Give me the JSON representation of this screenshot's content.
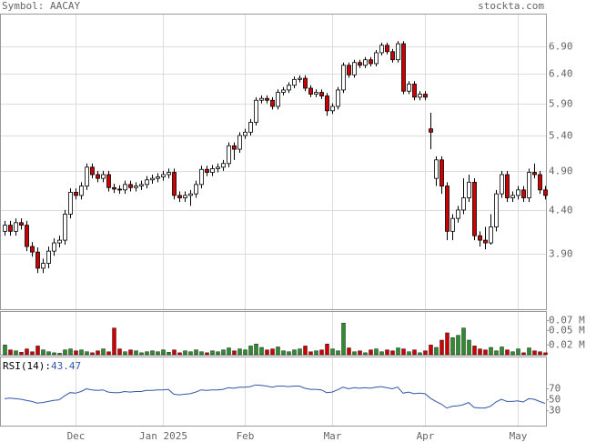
{
  "chart_data": {
    "type": "candlestick",
    "title": "Symbol: AACAY",
    "source": "stockta.com",
    "log_scale": true,
    "grid": true,
    "up_color": "#ffffff",
    "down_color": "#cc0000",
    "volume_up_color": "#2e8b2e",
    "volume_down_color": "#cc0000",
    "categories": [
      null,
      null,
      null,
      null,
      null,
      null,
      null,
      null,
      null,
      null,
      null,
      null,
      null,
      "Dec",
      null,
      null,
      null,
      null,
      null,
      null,
      null,
      null,
      null,
      null,
      null,
      null,
      null,
      null,
      null,
      "Jan 2025",
      null,
      null,
      null,
      null,
      null,
      null,
      null,
      null,
      null,
      null,
      null,
      null,
      null,
      null,
      "Feb",
      null,
      null,
      null,
      null,
      null,
      null,
      null,
      null,
      null,
      null,
      null,
      null,
      null,
      null,
      null,
      "Mar",
      null,
      null,
      null,
      null,
      null,
      null,
      null,
      null,
      null,
      null,
      null,
      null,
      null,
      null,
      null,
      null,
      "Apr",
      null,
      null,
      null,
      null,
      null,
      null,
      null,
      null,
      null,
      null,
      null,
      null,
      null,
      null,
      null,
      null,
      "May",
      null,
      null,
      null,
      null,
      null
    ],
    "open": [
      4.15,
      4.22,
      4.15,
      4.25,
      4.22,
      3.98,
      3.92,
      3.75,
      3.8,
      3.93,
      4.02,
      4.05,
      4.35,
      4.62,
      4.58,
      4.7,
      4.95,
      4.85,
      4.8,
      4.85,
      4.68,
      4.66,
      4.65,
      4.72,
      4.68,
      4.7,
      4.72,
      4.78,
      4.8,
      4.82,
      4.85,
      4.88,
      4.58,
      4.55,
      4.58,
      4.6,
      4.72,
      4.92,
      4.88,
      4.93,
      4.95,
      5.0,
      5.25,
      5.2,
      5.4,
      5.45,
      5.6,
      5.95,
      5.98,
      5.95,
      5.85,
      6.08,
      6.12,
      6.2,
      6.3,
      6.32,
      6.15,
      6.05,
      6.08,
      6.02,
      5.78,
      5.85,
      6.12,
      6.55,
      6.38,
      6.6,
      6.55,
      6.65,
      6.58,
      6.78,
      6.92,
      6.8,
      6.65,
      6.95,
      6.1,
      6.22,
      6.0,
      6.05,
      5.5,
      4.8,
      5.05,
      4.7,
      4.15,
      4.3,
      4.4,
      4.55,
      4.75,
      4.1,
      4.05,
      4.02,
      4.2,
      4.6,
      4.85,
      4.55,
      4.58,
      4.65,
      4.55,
      4.88,
      4.85,
      4.65
    ],
    "high": [
      4.27,
      4.27,
      4.3,
      4.3,
      4.27,
      4.03,
      3.97,
      3.85,
      3.98,
      4.07,
      4.1,
      4.4,
      4.67,
      4.67,
      4.75,
      5.0,
      5.0,
      4.9,
      4.9,
      4.9,
      4.73,
      4.71,
      4.77,
      4.77,
      4.75,
      4.77,
      4.83,
      4.85,
      4.87,
      4.9,
      4.93,
      4.93,
      4.63,
      4.63,
      4.65,
      4.77,
      4.97,
      4.97,
      4.98,
      5.0,
      5.05,
      5.3,
      5.3,
      5.45,
      5.5,
      5.65,
      6.0,
      6.03,
      6.03,
      6.0,
      6.13,
      6.17,
      6.25,
      6.35,
      6.37,
      6.37,
      6.2,
      6.13,
      6.13,
      6.07,
      5.9,
      6.17,
      6.6,
      6.6,
      6.65,
      6.65,
      6.7,
      6.7,
      6.83,
      6.97,
      6.97,
      6.85,
      7.0,
      7.0,
      6.27,
      6.27,
      6.1,
      6.1,
      5.75,
      5.1,
      5.1,
      4.75,
      4.35,
      4.45,
      4.8,
      4.85,
      4.8,
      4.15,
      4.2,
      4.35,
      4.65,
      4.9,
      4.9,
      4.63,
      4.7,
      4.7,
      4.93,
      5.0,
      4.9,
      4.7
    ],
    "low": [
      4.1,
      4.1,
      4.1,
      4.17,
      3.93,
      3.87,
      3.7,
      3.7,
      3.75,
      3.88,
      3.97,
      4.0,
      4.3,
      4.53,
      4.53,
      4.65,
      4.8,
      4.75,
      4.75,
      4.63,
      4.61,
      4.6,
      4.6,
      4.63,
      4.63,
      4.65,
      4.67,
      4.73,
      4.75,
      4.77,
      4.8,
      4.53,
      4.5,
      4.5,
      4.45,
      4.55,
      4.67,
      4.83,
      4.83,
      4.88,
      4.9,
      4.95,
      5.05,
      5.15,
      5.35,
      5.4,
      5.55,
      5.9,
      5.9,
      5.8,
      5.8,
      6.03,
      6.07,
      6.15,
      6.25,
      6.1,
      6.0,
      6.0,
      5.97,
      5.7,
      5.73,
      5.8,
      6.07,
      6.33,
      6.33,
      6.5,
      6.5,
      6.53,
      6.53,
      6.73,
      6.75,
      6.6,
      6.6,
      6.05,
      6.05,
      5.95,
      5.95,
      5.95,
      5.2,
      4.7,
      4.6,
      4.05,
      4.05,
      4.25,
      4.35,
      4.5,
      4.05,
      3.98,
      3.95,
      4.0,
      4.15,
      4.55,
      4.5,
      4.5,
      4.53,
      4.5,
      4.5,
      4.8,
      4.6,
      4.53
    ],
    "close": [
      4.22,
      4.15,
      4.25,
      4.22,
      3.98,
      3.92,
      3.75,
      3.8,
      3.93,
      4.02,
      4.05,
      4.35,
      4.62,
      4.58,
      4.7,
      4.95,
      4.85,
      4.8,
      4.85,
      4.68,
      4.66,
      4.65,
      4.72,
      4.68,
      4.7,
      4.72,
      4.78,
      4.8,
      4.82,
      4.85,
      4.88,
      4.58,
      4.55,
      4.58,
      4.6,
      4.72,
      4.92,
      4.88,
      4.93,
      4.95,
      5.0,
      5.25,
      5.2,
      5.4,
      5.45,
      5.6,
      5.95,
      5.98,
      5.95,
      5.85,
      6.08,
      6.12,
      6.2,
      6.3,
      6.32,
      6.15,
      6.05,
      6.08,
      6.02,
      5.78,
      5.85,
      6.12,
      6.55,
      6.38,
      6.6,
      6.55,
      6.65,
      6.58,
      6.78,
      6.92,
      6.8,
      6.65,
      6.95,
      6.1,
      6.22,
      6.0,
      6.05,
      6.0,
      5.45,
      5.05,
      4.7,
      4.15,
      4.3,
      4.4,
      4.55,
      4.75,
      4.1,
      4.05,
      4.02,
      4.2,
      4.6,
      4.85,
      4.55,
      4.58,
      4.65,
      4.55,
      4.88,
      4.85,
      4.65,
      4.58
    ],
    "ylim": [
      3.35,
      7.53
    ],
    "yticks": [
      {
        "value": 6.9,
        "label": "6.90"
      },
      {
        "value": 6.4,
        "label": "6.40"
      },
      {
        "value": 5.9,
        "label": "5.90"
      },
      {
        "value": 5.4,
        "label": "5.40"
      },
      {
        "value": 4.9,
        "label": "4.90"
      },
      {
        "value": 4.4,
        "label": "4.40"
      },
      {
        "value": 3.9,
        "label": "3.90"
      }
    ],
    "volume": {
      "values": [
        0.02,
        0.01,
        0.008,
        0.005,
        0.012,
        0.006,
        0.018,
        0.01,
        0.006,
        0.004,
        0.003,
        0.01,
        0.012,
        0.008,
        0.01,
        0.006,
        0.004,
        0.008,
        0.012,
        0.006,
        0.055,
        0.012,
        0.006,
        0.01,
        0.008,
        0.004,
        0.006,
        0.008,
        0.006,
        0.01,
        0.005,
        0.01,
        0.004,
        0.008,
        0.006,
        0.01,
        0.006,
        0.004,
        0.008,
        0.006,
        0.01,
        0.014,
        0.008,
        0.012,
        0.01,
        0.018,
        0.022,
        0.015,
        0.01,
        0.012,
        0.016,
        0.008,
        0.006,
        0.01,
        0.012,
        0.018,
        0.006,
        0.008,
        0.01,
        0.022,
        0.012,
        0.008,
        0.065,
        0.014,
        0.006,
        0.008,
        0.004,
        0.01,
        0.012,
        0.006,
        0.01,
        0.008,
        0.014,
        0.012,
        0.006,
        0.01,
        0.004,
        0.008,
        0.02,
        0.015,
        0.03,
        0.045,
        0.035,
        0.04,
        0.055,
        0.03,
        0.018,
        0.012,
        0.01,
        0.015,
        0.008,
        0.016,
        0.01,
        0.006,
        0.012,
        0.004,
        0.014,
        0.008,
        0.006,
        0.004
      ],
      "ylim": [
        0,
        0.088
      ],
      "yticks": [
        {
          "value": 0.07,
          "label": "0.07 M"
        },
        {
          "value": 0.05,
          "label": "0.05 M"
        },
        {
          "value": 0.02,
          "label": "0.02 M"
        }
      ]
    },
    "rsi": {
      "label": "RSI(14):",
      "color": "#3355aa",
      "values": [
        52,
        53,
        52,
        51,
        49,
        47,
        44,
        45,
        47,
        49,
        50,
        57,
        63,
        62,
        65,
        70,
        68,
        67,
        68,
        64,
        63,
        63,
        65,
        64,
        65,
        65,
        67,
        67,
        68,
        68,
        69,
        60,
        59,
        60,
        61,
        64,
        68,
        67,
        68,
        68,
        69,
        72,
        71,
        73,
        73,
        74,
        77,
        76,
        75,
        73,
        75,
        75,
        74,
        75,
        75,
        71,
        69,
        69,
        68,
        63,
        64,
        68,
        73,
        70,
        72,
        71,
        72,
        71,
        73,
        74,
        72,
        70,
        73,
        62,
        64,
        61,
        62,
        61,
        53,
        47,
        42,
        35,
        38,
        39,
        41,
        45,
        36,
        35,
        35,
        38,
        46,
        51,
        47,
        47,
        48,
        46,
        52,
        51,
        47,
        43.47
      ],
      "ylim": [
        3,
        127
      ],
      "yticks": [
        70,
        50,
        30
      ]
    }
  }
}
